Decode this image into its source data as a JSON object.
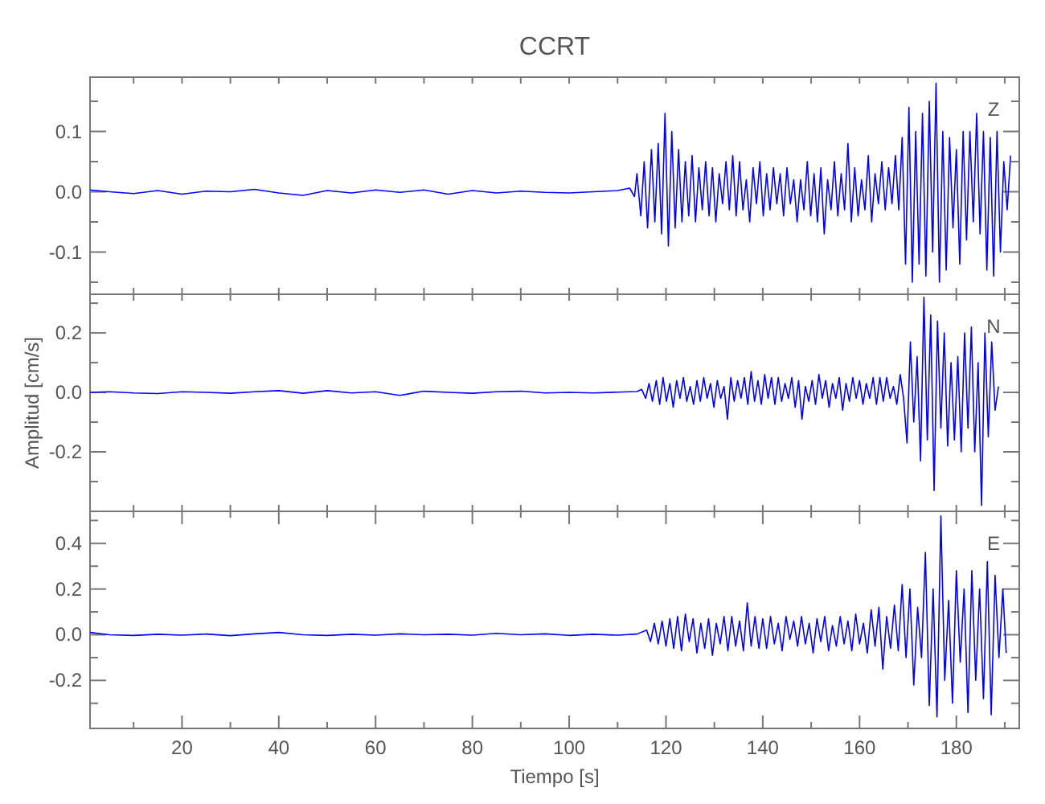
{
  "chart_data": [
    {
      "type": "line",
      "title": "CCRT",
      "annotations": [
        "Z"
      ],
      "tick_labels": "y",
      "xlim": [
        1,
        193
      ],
      "ylim": [
        -0.17,
        0.19
      ],
      "xticks": [
        {
          "value": 10,
          "label": null
        },
        {
          "value": 20,
          "label": null
        },
        {
          "value": 30,
          "label": null
        },
        {
          "value": 40,
          "label": null
        },
        {
          "value": 50,
          "label": null
        },
        {
          "value": 60,
          "label": null
        },
        {
          "value": 70,
          "label": null
        },
        {
          "value": 80,
          "label": null
        },
        {
          "value": 90,
          "label": null
        },
        {
          "value": 100,
          "label": null
        },
        {
          "value": 110,
          "label": null
        },
        {
          "value": 120,
          "label": null
        },
        {
          "value": 130,
          "label": null
        },
        {
          "value": 140,
          "label": null
        },
        {
          "value": 150,
          "label": null
        },
        {
          "value": 160,
          "label": null
        },
        {
          "value": 170,
          "label": null
        },
        {
          "value": 180,
          "label": null
        },
        {
          "value": 190,
          "label": null
        }
      ],
      "yticks": [
        {
          "value": -0.15,
          "label": null
        },
        -0.1,
        {
          "value": -0.05,
          "label": null
        },
        {
          "value": 0,
          "label": "0.0"
        },
        {
          "value": 0.05,
          "label": null
        },
        0.1,
        {
          "value": 0.15,
          "label": null
        }
      ],
      "x": [
        1,
        5,
        10,
        15,
        20,
        25,
        30,
        35,
        40,
        45,
        50,
        55,
        60,
        65,
        70,
        75,
        80,
        85,
        90,
        95,
        100,
        105,
        110,
        112.5,
        113.5,
        114,
        114.8,
        115.5,
        116.2,
        117,
        117.7,
        118.4,
        119.1,
        119.8,
        120.5,
        121.2,
        121.9,
        122.6,
        123.3,
        124,
        124.7,
        125.4,
        126.1,
        126.8,
        127.5,
        128.2,
        128.9,
        129.6,
        130.3,
        131,
        131.7,
        132.4,
        133.1,
        133.8,
        134.5,
        135.2,
        135.9,
        136.6,
        137.3,
        138,
        138.7,
        139.4,
        140.1,
        140.8,
        141.5,
        142.2,
        142.9,
        143.6,
        144.3,
        145,
        145.7,
        146.4,
        147.1,
        147.8,
        148.5,
        149.2,
        149.9,
        150.6,
        151.3,
        152,
        152.7,
        153.4,
        154.1,
        154.8,
        155.5,
        156.2,
        156.9,
        157.6,
        158.3,
        159,
        159.7,
        160.4,
        161.1,
        161.8,
        162.5,
        163.2,
        163.9,
        164.6,
        165.3,
        166,
        166.7,
        167.4,
        168.1,
        168.8,
        169.5,
        170.2,
        170.9,
        171.6,
        172.3,
        173,
        173.7,
        174.4,
        175.1,
        175.8,
        176.5,
        177.2,
        177.9,
        178.6,
        179.3,
        180,
        180.7,
        181.4,
        182.1,
        182.8,
        183.5,
        184.2,
        184.9,
        185.6,
        186.3,
        187,
        187.7,
        188.4,
        189.1,
        189.8,
        190.5,
        191.2
      ],
      "series": [
        {
          "color": "#0000ff",
          "values": [
            0.003,
            0,
            -0.003,
            0.002,
            -0.004,
            0.001,
            0,
            0.004,
            -0.002,
            -0.006,
            0.002,
            -0.002,
            0.003,
            -0.001,
            0.003,
            -0.004,
            0.002,
            -0.002,
            0.001,
            -0.001,
            -0.002,
            0,
            0.002,
            0.006,
            -0.008,
            0.03,
            -0.04,
            0.05,
            -0.06,
            0.07,
            -0.05,
            0.08,
            -0.07,
            0.13,
            -0.09,
            0.1,
            -0.06,
            0.07,
            -0.05,
            0.05,
            -0.04,
            0.06,
            -0.05,
            0.04,
            -0.03,
            0.05,
            -0.04,
            0.04,
            -0.05,
            0.03,
            -0.02,
            0.05,
            -0.03,
            0.06,
            -0.04,
            0.05,
            -0.03,
            0.02,
            -0.05,
            0.04,
            -0.02,
            0.05,
            -0.04,
            0.03,
            -0.03,
            0.04,
            -0.02,
            0.03,
            -0.04,
            0.04,
            -0.02,
            0.02,
            -0.05,
            0.02,
            -0.03,
            0.05,
            -0.04,
            0.03,
            -0.05,
            0.04,
            -0.07,
            0.02,
            -0.03,
            0.05,
            -0.04,
            0.03,
            -0.03,
            0.08,
            -0.05,
            0.04,
            -0.04,
            0.02,
            -0.03,
            0.06,
            -0.05,
            0.03,
            -0.02,
            0.05,
            -0.03,
            0.04,
            -0.02,
            0.06,
            -0.03,
            0.09,
            -0.12,
            0.14,
            -0.15,
            0.1,
            -0.12,
            0.13,
            -0.14,
            0.15,
            -0.1,
            0.18,
            -0.15,
            0.1,
            -0.13,
            0.09,
            -0.06,
            0.07,
            -0.12,
            0.1,
            -0.08,
            0.1,
            -0.05,
            0.13,
            -0.07,
            0.1,
            -0.13,
            0.09,
            -0.14,
            0.1,
            -0.1,
            0.05,
            -0.03,
            0.06
          ]
        }
      ]
    },
    {
      "type": "line",
      "annotations": [
        "N"
      ],
      "ylabel": "Amplitud [cm/s]",
      "tick_labels": "y",
      "xlim": [
        1,
        193
      ],
      "ylim": [
        -0.4,
        0.33
      ],
      "xticks": [
        {
          "value": 10,
          "label": null
        },
        {
          "value": 20,
          "label": null
        },
        {
          "value": 30,
          "label": null
        },
        {
          "value": 40,
          "label": null
        },
        {
          "value": 50,
          "label": null
        },
        {
          "value": 60,
          "label": null
        },
        {
          "value": 70,
          "label": null
        },
        {
          "value": 80,
          "label": null
        },
        {
          "value": 90,
          "label": null
        },
        {
          "value": 100,
          "label": null
        },
        {
          "value": 110,
          "label": null
        },
        {
          "value": 120,
          "label": null
        },
        {
          "value": 130,
          "label": null
        },
        {
          "value": 140,
          "label": null
        },
        {
          "value": 150,
          "label": null
        },
        {
          "value": 160,
          "label": null
        },
        {
          "value": 170,
          "label": null
        },
        {
          "value": 180,
          "label": null
        },
        {
          "value": 190,
          "label": null
        }
      ],
      "yticks": [
        {
          "value": -0.3,
          "label": null
        },
        -0.2,
        {
          "value": -0.1,
          "label": null
        },
        {
          "value": 0,
          "label": "0.0"
        },
        {
          "value": 0.1,
          "label": null
        },
        0.2,
        {
          "value": 0.3,
          "label": null
        }
      ],
      "x": [
        1,
        5,
        10,
        15,
        20,
        25,
        30,
        35,
        40,
        45,
        50,
        55,
        60,
        65,
        70,
        75,
        80,
        85,
        90,
        95,
        100,
        105,
        110,
        114,
        115,
        115.8,
        116.5,
        117.2,
        118,
        118.7,
        119.4,
        120.1,
        120.8,
        121.5,
        122.2,
        122.9,
        123.6,
        124.3,
        125,
        125.7,
        126.4,
        127.1,
        127.8,
        128.5,
        129.2,
        129.9,
        130.6,
        131.3,
        132,
        132.7,
        133.4,
        134.1,
        134.8,
        135.5,
        136.2,
        136.9,
        137.6,
        138.3,
        139,
        139.7,
        140.4,
        141.1,
        141.8,
        142.5,
        143.2,
        143.9,
        144.6,
        145.3,
        146,
        146.7,
        147.4,
        148.1,
        148.8,
        149.5,
        150.2,
        150.9,
        151.6,
        152.3,
        153,
        153.7,
        154.4,
        155.1,
        155.8,
        156.5,
        157.2,
        157.9,
        158.6,
        159.3,
        160,
        160.7,
        161.4,
        162.1,
        162.8,
        163.5,
        164.2,
        164.9,
        165.6,
        166.3,
        167,
        167.7,
        168.4,
        169.1,
        169.8,
        170.5,
        171.2,
        171.9,
        172.6,
        173.3,
        174,
        174.7,
        175.4,
        176.1,
        176.8,
        177.5,
        178.2,
        178.9,
        179.6,
        180.3,
        181,
        181.7,
        182.4,
        183.1,
        183.8,
        184.5,
        185.2,
        185.9,
        186.6,
        187.3,
        188,
        188.7
      ],
      "series": [
        {
          "color": "#0000ff",
          "values": [
            0,
            0.002,
            -0.002,
            -0.004,
            0.002,
            0,
            -0.003,
            0.002,
            0.006,
            -0.003,
            0.006,
            -0.002,
            0.002,
            -0.01,
            0.004,
            0,
            -0.003,
            0.002,
            0.004,
            -0.002,
            0,
            -0.002,
            0.001,
            0.003,
            0.01,
            -0.02,
            0.03,
            -0.03,
            0.04,
            -0.04,
            0.05,
            -0.03,
            0.03,
            -0.05,
            0.04,
            -0.02,
            0.05,
            -0.03,
            0.02,
            -0.04,
            0.04,
            -0.03,
            0.05,
            -0.02,
            0.03,
            -0.05,
            0.04,
            -0.02,
            0.02,
            -0.09,
            0.05,
            -0.03,
            0.04,
            -0.02,
            0.05,
            -0.04,
            0.07,
            -0.03,
            0.04,
            -0.04,
            0.06,
            -0.02,
            0.05,
            -0.04,
            0.05,
            -0.03,
            0.03,
            -0.02,
            0.05,
            -0.05,
            0.04,
            -0.09,
            0.02,
            -0.03,
            0.04,
            -0.04,
            0.06,
            -0.02,
            0.04,
            -0.05,
            0.03,
            -0.02,
            0.05,
            -0.06,
            0.03,
            -0.03,
            0.05,
            -0.02,
            0.04,
            -0.04,
            0.03,
            -0.02,
            0.05,
            -0.04,
            0.05,
            -0.03,
            0.05,
            -0.02,
            0.02,
            -0.04,
            0.06,
            -0.02,
            -0.17,
            0.17,
            -0.1,
            0.12,
            -0.23,
            0.32,
            -0.16,
            0.26,
            -0.33,
            0.24,
            -0.12,
            0.2,
            -0.18,
            0.1,
            -0.16,
            0.12,
            -0.2,
            0.2,
            -0.12,
            0.22,
            -0.2,
            0.1,
            -0.38,
            0.2,
            -0.15,
            0.17,
            -0.06,
            0.02
          ]
        }
      ]
    },
    {
      "type": "line",
      "annotations": [
        "E"
      ],
      "xlabel": "Tiempo [s]",
      "xlim": [
        1,
        193
      ],
      "ylim": [
        -0.41,
        0.54
      ],
      "xticks": [
        {
          "value": 10,
          "label": null
        },
        20,
        {
          "value": 30,
          "label": null
        },
        40,
        {
          "value": 50,
          "label": null
        },
        60,
        {
          "value": 70,
          "label": null
        },
        80,
        {
          "value": 90,
          "label": null
        },
        100,
        {
          "value": 110,
          "label": null
        },
        120,
        {
          "value": 130,
          "label": null
        },
        140,
        {
          "value": 150,
          "label": null
        },
        160,
        {
          "value": 170,
          "label": null
        },
        180,
        {
          "value": 190,
          "label": null
        }
      ],
      "yticks": [
        {
          "value": -0.3,
          "label": null
        },
        -0.2,
        {
          "value": -0.1,
          "label": null
        },
        {
          "value": 0,
          "label": "0.0"
        },
        {
          "value": 0.1,
          "label": null
        },
        0.2,
        {
          "value": 0.3,
          "label": null
        },
        0.4,
        {
          "value": 0.5,
          "label": null
        }
      ],
      "x": [
        1,
        5,
        10,
        15,
        20,
        25,
        30,
        35,
        40,
        45,
        50,
        55,
        60,
        65,
        70,
        75,
        80,
        85,
        90,
        95,
        100,
        105,
        110,
        114,
        116,
        116.8,
        117.6,
        118.4,
        119.2,
        120,
        120.8,
        121.6,
        122.4,
        123.2,
        124,
        124.8,
        125.6,
        126.4,
        127.2,
        128,
        128.8,
        129.6,
        130.4,
        131.2,
        132,
        132.8,
        133.6,
        134.4,
        135.2,
        136,
        136.8,
        137.6,
        138.4,
        139.2,
        140,
        140.8,
        141.6,
        142.4,
        143.2,
        144,
        144.8,
        145.6,
        146.4,
        147.2,
        148,
        148.8,
        149.6,
        150.4,
        151.2,
        152,
        152.8,
        153.6,
        154.4,
        155.2,
        156,
        156.8,
        157.6,
        158.4,
        159.2,
        160,
        160.8,
        161.6,
        162.4,
        163.2,
        164,
        164.8,
        165.6,
        166.4,
        167.2,
        168,
        168.8,
        169.6,
        170.4,
        171.2,
        172,
        172.8,
        173.6,
        174.4,
        175.2,
        176,
        176.8,
        177.6,
        178.4,
        179.2,
        180,
        180.8,
        181.6,
        182.4,
        183.2,
        184,
        184.8,
        185.6,
        186.4,
        187.2,
        188,
        188.8,
        189.6,
        190.3
      ],
      "series": [
        {
          "color": "#0000ff",
          "values": [
            0.01,
            0,
            -0.003,
            0.002,
            -0.002,
            0.003,
            -0.004,
            0.004,
            0.01,
            0,
            -0.003,
            0.002,
            -0.002,
            0.004,
            0,
            0.002,
            -0.002,
            0.006,
            0,
            0.004,
            -0.003,
            0.002,
            -0.002,
            0.003,
            0.02,
            -0.03,
            0.05,
            -0.04,
            0.06,
            -0.05,
            0.07,
            -0.06,
            0.08,
            -0.07,
            0.09,
            -0.03,
            0.07,
            -0.08,
            0.05,
            -0.06,
            0.07,
            -0.09,
            0.05,
            -0.04,
            0.08,
            -0.07,
            0.08,
            -0.05,
            0.06,
            -0.07,
            0.14,
            -0.05,
            0.08,
            -0.06,
            0.07,
            -0.06,
            0.08,
            -0.04,
            0.05,
            -0.07,
            0.08,
            -0.02,
            0.06,
            -0.05,
            0.08,
            -0.04,
            0.05,
            -0.08,
            0.07,
            -0.03,
            0.08,
            -0.07,
            0.04,
            -0.05,
            0.08,
            -0.04,
            0.06,
            -0.07,
            0.09,
            -0.04,
            0.05,
            -0.08,
            0.11,
            -0.05,
            0.12,
            -0.15,
            0.08,
            -0.06,
            0.13,
            -0.07,
            0.22,
            -0.1,
            0.2,
            -0.22,
            0.12,
            -0.1,
            0.36,
            -0.31,
            0.2,
            -0.36,
            0.52,
            -0.2,
            0.15,
            -0.3,
            0.28,
            -0.12,
            0.2,
            -0.34,
            0.28,
            -0.2,
            0.2,
            -0.28,
            0.32,
            -0.35,
            0.26,
            -0.1,
            0.2,
            -0.08
          ]
        }
      ]
    }
  ]
}
